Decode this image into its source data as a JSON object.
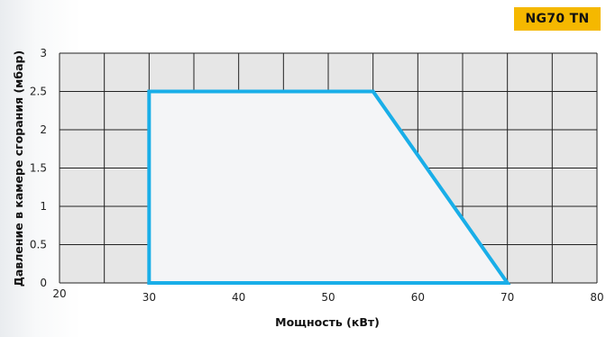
{
  "badge": {
    "label": "NG70 TN"
  },
  "colors": {
    "badge": "#f5b800",
    "curve": "#19aee8",
    "grid_cell": "#e6e6e6",
    "area": "#f4f5f7"
  },
  "chart_data": {
    "type": "area",
    "title": "",
    "xlabel": "Мощность (кВт)",
    "ylabel": "Давление в камере сгорания (мбар)",
    "xlim": [
      20,
      80
    ],
    "ylim": [
      0,
      3
    ],
    "x_ticks": [
      20,
      30,
      40,
      50,
      60,
      70,
      80
    ],
    "y_ticks": [
      0,
      0.5,
      1,
      1.5,
      2,
      2.5,
      3
    ],
    "x_tick_labels": [
      "20",
      "30",
      "40",
      "50",
      "60",
      "70",
      "80"
    ],
    "y_tick_labels": [
      "0",
      "0.5",
      "1",
      "1.5",
      "2",
      "2.5",
      "3"
    ],
    "grid": true,
    "x_grid_step": 5,
    "y_grid_step": 0.5,
    "series": [
      {
        "x": [
          30,
          30,
          55,
          70,
          30
        ],
        "y": [
          0,
          2.5,
          2.5,
          0,
          0
        ]
      }
    ]
  }
}
